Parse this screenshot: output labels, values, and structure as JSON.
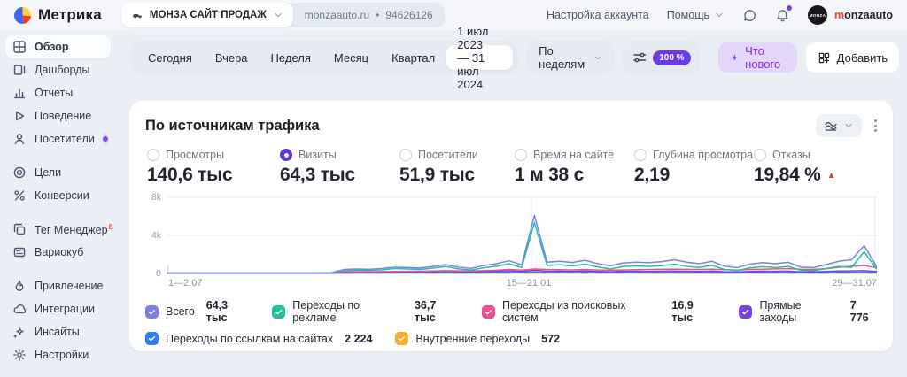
{
  "theme": {
    "accent": "#6c3be6",
    "whats_new_bg": "#e4d7fb",
    "whats_new_text": "#8123f5",
    "negative": "#dd3b30",
    "beta_badge": "#e8442e",
    "card_bg": "#ffffff",
    "page_bg": "#ebeff6"
  },
  "topbar": {
    "brand": "Метрика",
    "counter": {
      "icon": "car-icon",
      "name": "МОНЗА САЙТ ПРОДАЖ",
      "domain": "monzaauto.ru",
      "separator": "•",
      "id": "94626126"
    },
    "account_settings": "Настройка аккаунта",
    "help": "Помощь",
    "icons": [
      "chat-icon",
      "bell-icon"
    ],
    "avatar_text": "MONZA",
    "user": "monzaauto"
  },
  "sidebar": {
    "items": [
      {
        "label": "Обзор",
        "icon": "overview-icon",
        "active": true
      },
      {
        "label": "Дашборды",
        "icon": "dashboards-icon"
      },
      {
        "label": "Отчеты",
        "icon": "reports-icon"
      },
      {
        "label": "Поведение",
        "icon": "behavior-icon"
      },
      {
        "label": "Посетители",
        "icon": "visitors-icon",
        "badge": "purple-dot"
      },
      {
        "label": "Цели",
        "icon": "goals-icon"
      },
      {
        "label": "Конверсии",
        "icon": "conversions-icon"
      },
      {
        "label": "Тег Менеджер",
        "icon": "tag-manager-icon",
        "beta": "ß"
      },
      {
        "label": "Вариокуб",
        "icon": "variocube-icon"
      },
      {
        "label": "Привлечение",
        "icon": "attraction-icon"
      },
      {
        "label": "Интеграции",
        "icon": "integrations-icon"
      },
      {
        "label": "Инсайты",
        "icon": "insights-icon"
      },
      {
        "label": "Настройки",
        "icon": "settings-icon"
      }
    ]
  },
  "toolbar": {
    "presets": [
      "Сегодня",
      "Вчера",
      "Неделя",
      "Месяц",
      "Квартал"
    ],
    "date_range": "1 июл 2023 — 31 июл 2024",
    "grouping": "По неделям",
    "sampling": "100 %",
    "whats_new": "Что нового",
    "add": "Добавить"
  },
  "card": {
    "title": "По источникам трафика",
    "metrics": [
      {
        "label": "Просмотры",
        "value": "140,6 тыс",
        "selected": false
      },
      {
        "label": "Визиты",
        "value": "64,3 тыс",
        "selected": true
      },
      {
        "label": "Посетители",
        "value": "51,9 тыс",
        "selected": false
      },
      {
        "label": "Время на сайте",
        "value": "1 м 38 с",
        "selected": false
      },
      {
        "label": "Глубина просмотра",
        "value": "2,19",
        "selected": false
      },
      {
        "label": "Отказы",
        "value": "19,84 %",
        "selected": false,
        "trend": "up"
      }
    ]
  },
  "chart_data": {
    "type": "line",
    "title": "По источникам трафика",
    "x_unit": "week",
    "x_tick_labels": [
      "1—2.07",
      "15—21.01",
      "29—31.07"
    ],
    "y_tick_labels": [
      "0",
      "4k",
      "8k"
    ],
    "ylim": [
      0,
      8000
    ],
    "grid": true,
    "legend_position": "bottom",
    "series": [
      {
        "name": "Всего",
        "total": "64,3 тыс",
        "color": "#7a80e8",
        "values": [
          0,
          0,
          0,
          0,
          0,
          0,
          0,
          0,
          0,
          0,
          0,
          0,
          0,
          60,
          380,
          430,
          400,
          500,
          640,
          580,
          540,
          700,
          900,
          640,
          500,
          800,
          1000,
          1300,
          880,
          6050,
          1150,
          1250,
          1120,
          1350,
          1000,
          780,
          1080,
          1150,
          1100,
          1200,
          1400,
          1150,
          1000,
          1250,
          720,
          580,
          950,
          1100,
          1000,
          1150,
          640,
          580,
          900,
          1250,
          1400,
          2900,
          620
        ]
      },
      {
        "name": "Переходы по рекламе",
        "total": "36,7 тыс",
        "color": "#1fc1a0",
        "values": [
          0,
          0,
          0,
          0,
          0,
          0,
          0,
          0,
          0,
          0,
          0,
          0,
          0,
          30,
          250,
          300,
          280,
          350,
          480,
          430,
          380,
          520,
          700,
          450,
          330,
          560,
          720,
          980,
          600,
          5300,
          800,
          880,
          760,
          950,
          650,
          430,
          700,
          760,
          700,
          780,
          950,
          720,
          600,
          820,
          380,
          280,
          560,
          680,
          580,
          700,
          300,
          260,
          480,
          700,
          600,
          2250,
          380
        ]
      },
      {
        "name": "Переходы из поисковых систем",
        "total": "16,9 тыс",
        "color": "#ee4d93",
        "values": [
          0,
          0,
          0,
          0,
          0,
          0,
          0,
          0,
          0,
          0,
          0,
          0,
          0,
          20,
          120,
          140,
          150,
          160,
          180,
          190,
          200,
          220,
          260,
          240,
          220,
          260,
          300,
          380,
          320,
          430,
          380,
          360,
          340,
          380,
          330,
          300,
          330,
          360,
          380,
          400,
          420,
          400,
          380,
          420,
          360,
          320,
          380,
          420,
          440,
          470,
          420,
          400,
          460,
          620,
          720,
          800,
          560
        ]
      },
      {
        "name": "Прямые заходы",
        "total": "7 776",
        "color": "#7b3fe4",
        "values": [
          0,
          0,
          0,
          0,
          0,
          0,
          0,
          0,
          0,
          0,
          0,
          0,
          0,
          10,
          90,
          110,
          100,
          120,
          150,
          140,
          130,
          160,
          200,
          160,
          130,
          170,
          200,
          250,
          180,
          300,
          200,
          210,
          190,
          220,
          180,
          150,
          190,
          200,
          190,
          200,
          220,
          200,
          180,
          210,
          150,
          130,
          180,
          200,
          190,
          210,
          150,
          140,
          180,
          220,
          240,
          260,
          170
        ]
      },
      {
        "name": "Переходы по ссылкам на сайтах",
        "total": "2 224",
        "color": "#2d7ff9",
        "values": [
          0,
          0,
          0,
          0,
          0,
          0,
          0,
          0,
          0,
          0,
          0,
          0,
          0,
          5,
          40,
          45,
          40,
          50,
          60,
          55,
          50,
          60,
          75,
          60,
          50,
          65,
          75,
          90,
          65,
          120,
          75,
          80,
          70,
          85,
          70,
          55,
          70,
          75,
          70,
          75,
          85,
          75,
          65,
          80,
          55,
          45,
          65,
          75,
          70,
          75,
          55,
          50,
          65,
          80,
          85,
          95,
          60
        ]
      },
      {
        "name": "Внутренние переходы",
        "total": "572",
        "color": "#f5ab2e",
        "values": [
          0,
          0,
          0,
          0,
          0,
          0,
          0,
          0,
          0,
          0,
          0,
          0,
          0,
          2,
          10,
          12,
          10,
          12,
          15,
          14,
          12,
          15,
          18,
          14,
          12,
          15,
          18,
          22,
          16,
          30,
          18,
          19,
          17,
          20,
          16,
          13,
          17,
          18,
          17,
          18,
          20,
          18,
          16,
          19,
          13,
          11,
          16,
          18,
          17,
          19,
          13,
          12,
          16,
          20,
          21,
          23,
          15
        ]
      }
    ]
  }
}
